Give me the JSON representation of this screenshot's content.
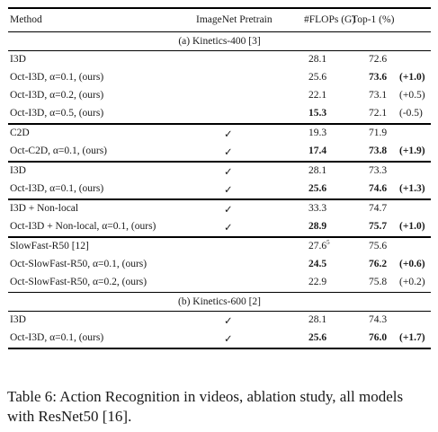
{
  "table": {
    "columns": [
      "Method",
      "ImageNet Pretrain",
      "#FLOPs (G)",
      "Top-1 (%)"
    ],
    "sections": [
      {
        "title": "(a) Kinetics-400 [3]",
        "groups": [
          [
            {
              "method": "I3D",
              "pretrain": "",
              "flops": "28.1",
              "top1": "72.6",
              "delta": ""
            },
            {
              "method": "Oct-I3D, α=0.1, (ours)",
              "pretrain": "",
              "flops": "25.6",
              "top1": "73.6",
              "delta": "(+1.0)",
              "top1_bold": true,
              "delta_bold": true
            },
            {
              "method": "Oct-I3D, α=0.2, (ours)",
              "pretrain": "",
              "flops": "22.1",
              "top1": "73.1",
              "delta": "(+0.5)"
            },
            {
              "method": "Oct-I3D, α=0.5, (ours)",
              "pretrain": "",
              "flops": "15.3",
              "top1": "72.1",
              "delta": "(-0.5)",
              "flops_bold": true
            }
          ],
          [
            {
              "method": "C2D",
              "pretrain": "✓",
              "flops": "19.3",
              "top1": "71.9",
              "delta": ""
            },
            {
              "method": "Oct-C2D, α=0.1, (ours)",
              "pretrain": "✓",
              "flops": "17.4",
              "top1": "73.8",
              "delta": "(+1.9)",
              "flops_bold": true,
              "top1_bold": true,
              "delta_bold": true
            }
          ],
          [
            {
              "method": "I3D",
              "pretrain": "✓",
              "flops": "28.1",
              "top1": "73.3",
              "delta": ""
            },
            {
              "method": "Oct-I3D, α=0.1, (ours)",
              "pretrain": "✓",
              "flops": "25.6",
              "top1": "74.6",
              "delta": "(+1.3)",
              "flops_bold": true,
              "top1_bold": true,
              "delta_bold": true
            }
          ],
          [
            {
              "method": "I3D + Non-local",
              "pretrain": "✓",
              "flops": "33.3",
              "top1": "74.7",
              "delta": ""
            },
            {
              "method": "Oct-I3D + Non-local, α=0.1, (ours)",
              "pretrain": "✓",
              "flops": "28.9",
              "top1": "75.7",
              "delta": "(+1.0)",
              "flops_bold": true,
              "top1_bold": true,
              "delta_bold": true
            }
          ],
          [
            {
              "method": "SlowFast-R50 [12]",
              "pretrain": "",
              "flops": "27.6",
              "flops_sup": "5",
              "top1": "75.6",
              "delta": ""
            },
            {
              "method": "Oct-SlowFast-R50, α=0.1, (ours)",
              "pretrain": "",
              "flops": "24.5",
              "top1": "76.2",
              "delta": "(+0.6)",
              "flops_bold": true,
              "top1_bold": true,
              "delta_bold": true
            },
            {
              "method": "Oct-SlowFast-R50, α=0.2, (ours)",
              "pretrain": "",
              "flops": "22.9",
              "top1": "75.8",
              "delta": "(+0.2)"
            }
          ]
        ]
      },
      {
        "title": "(b) Kinetics-600 [2]",
        "groups": [
          [
            {
              "method": "I3D",
              "pretrain": "✓",
              "flops": "28.1",
              "top1": "74.3",
              "delta": ""
            },
            {
              "method": "Oct-I3D, α=0.1, (ours)",
              "pretrain": "✓",
              "flops": "25.6",
              "top1": "76.0",
              "delta": "(+1.7)",
              "flops_bold": true,
              "top1_bold": true,
              "delta_bold": true
            }
          ]
        ]
      }
    ]
  },
  "caption": "Table 6: Action Recognition in videos, ablation study, all models with ResNet50 [16]."
}
